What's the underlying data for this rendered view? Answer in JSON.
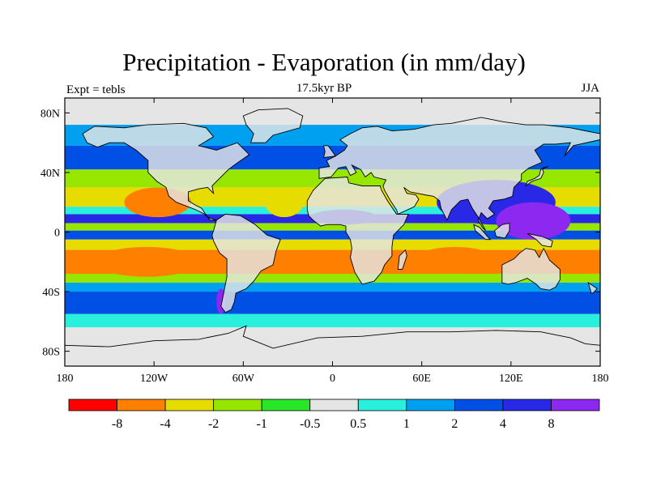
{
  "figure": {
    "title": "Precipitation - Evaporation (in mm/day)",
    "subtitle": "17.5kyr BP",
    "left_label": "Expt = tebls",
    "right_label": "JJA"
  },
  "map": {
    "projection": "cylindrical-equidistant",
    "lon_range": [
      -180,
      180
    ],
    "lat_range": [
      -90,
      90
    ],
    "lon_ticks": [
      {
        "value": -180,
        "label": "180"
      },
      {
        "value": -120,
        "label": "120W"
      },
      {
        "value": -60,
        "label": "60W"
      },
      {
        "value": 0,
        "label": "0"
      },
      {
        "value": 60,
        "label": "60E"
      },
      {
        "value": 120,
        "label": "120E"
      },
      {
        "value": 180,
        "label": "180"
      }
    ],
    "lat_ticks": [
      {
        "value": 80,
        "label": "80N"
      },
      {
        "value": 40,
        "label": "40N"
      },
      {
        "value": 0,
        "label": "0"
      },
      {
        "value": -40,
        "label": "40S"
      },
      {
        "value": -80,
        "label": "80S"
      }
    ],
    "background_color": "#e5e5e5",
    "coastline_color": "#000000"
  },
  "colorbar": {
    "colors": [
      "#ff0000",
      "#ff8000",
      "#e6dc00",
      "#96e600",
      "#28e628",
      "#e5e5e5",
      "#28f0dc",
      "#00a0f0",
      "#0050e6",
      "#2828e6",
      "#8c28f0"
    ],
    "labels": [
      "-8",
      "-4",
      "-2",
      "-1",
      "-0.5",
      "0.5",
      "1",
      "2",
      "4",
      "8"
    ]
  },
  "chart_data": {
    "type": "heatmap",
    "variable": "Precipitation - Evaporation",
    "units": "mm/day",
    "season": "JJA",
    "levels": [
      -8,
      -4,
      -2,
      -1,
      -0.5,
      0.5,
      1,
      2,
      4,
      8
    ],
    "zonal_bands": [
      {
        "lat": [
          72,
          90
        ],
        "value": 0
      },
      {
        "lat": [
          58,
          72
        ],
        "value": 1.5
      },
      {
        "lat": [
          42,
          58
        ],
        "value": 3
      },
      {
        "lat": [
          30,
          42
        ],
        "value": -1
      },
      {
        "lat": [
          17,
          30
        ],
        "value": -3
      },
      {
        "lat": [
          12,
          17
        ],
        "value": 1
      },
      {
        "lat": [
          6,
          12
        ],
        "value": 6
      },
      {
        "lat": [
          1,
          6
        ],
        "value": -1
      },
      {
        "lat": [
          -5,
          1
        ],
        "value": 3
      },
      {
        "lat": [
          -12,
          -5
        ],
        "value": -2
      },
      {
        "lat": [
          -28,
          -12
        ],
        "value": -5
      },
      {
        "lat": [
          -34,
          -28
        ],
        "value": -1.5
      },
      {
        "lat": [
          -40,
          -34
        ],
        "value": 1.5
      },
      {
        "lat": [
          -55,
          -40
        ],
        "value": 3
      },
      {
        "lat": [
          -64,
          -55
        ],
        "value": 0.8
      },
      {
        "lat": [
          -90,
          -64
        ],
        "value": 0
      }
    ],
    "features": [
      {
        "name": "North Pacific subtropical dry zone",
        "lon": [
          -140,
          -95
        ],
        "lat": [
          10,
          30
        ],
        "value": -5
      },
      {
        "name": "North Atlantic dry zone",
        "lon": [
          -45,
          -20
        ],
        "lat": [
          10,
          28
        ],
        "value": -3
      },
      {
        "name": "Asian monsoon",
        "lon": [
          70,
          150
        ],
        "lat": [
          5,
          35
        ],
        "value": 7
      },
      {
        "name": "Western Pacific warm pool",
        "lon": [
          110,
          160
        ],
        "lat": [
          -5,
          20
        ],
        "value": 9
      },
      {
        "name": "South Pacific dry zone",
        "lon": [
          -160,
          -90
        ],
        "lat": [
          -30,
          -10
        ],
        "value": -5.5
      },
      {
        "name": "Indian Ocean dry zone",
        "lon": [
          55,
          110
        ],
        "lat": [
          -28,
          -10
        ],
        "value": -5
      },
      {
        "name": "South Atlantic dry zone",
        "lon": [
          -30,
          10
        ],
        "lat": [
          -28,
          -12
        ],
        "value": -4.5
      },
      {
        "name": "Southern Chile",
        "lon": [
          -78,
          -72
        ],
        "lat": [
          -55,
          -38
        ],
        "value": 9
      },
      {
        "name": "West Africa monsoon",
        "lon": [
          -15,
          30
        ],
        "lat": [
          5,
          15
        ],
        "value": 5
      }
    ]
  }
}
